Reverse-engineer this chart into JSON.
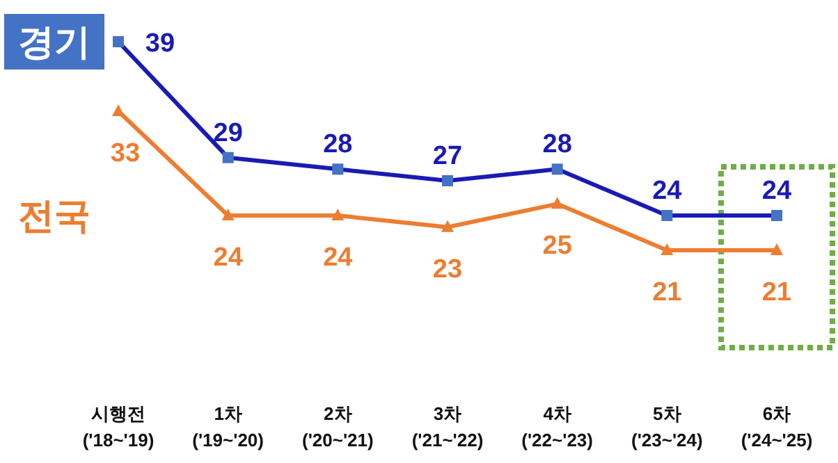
{
  "chart_data": {
    "type": "line",
    "categories": [
      "시행전\n('18~'19)",
      "1차\n('19~'20)",
      "2차\n('20~'21)",
      "3차\n('21~'22)",
      "4차\n('22~'23)",
      "5차\n('23~'24)",
      "6차\n('24~'25)"
    ],
    "series": [
      {
        "name": "경기",
        "color": "#1a1ab4",
        "marker": "square",
        "values": [
          39,
          29,
          28,
          27,
          28,
          24,
          24
        ]
      },
      {
        "name": "전국",
        "color": "#ed7d31",
        "marker": "triangle",
        "values": [
          33,
          24,
          24,
          23,
          25,
          21,
          21
        ]
      }
    ],
    "data_labels": true,
    "legend": "left",
    "grid": false
  }
}
